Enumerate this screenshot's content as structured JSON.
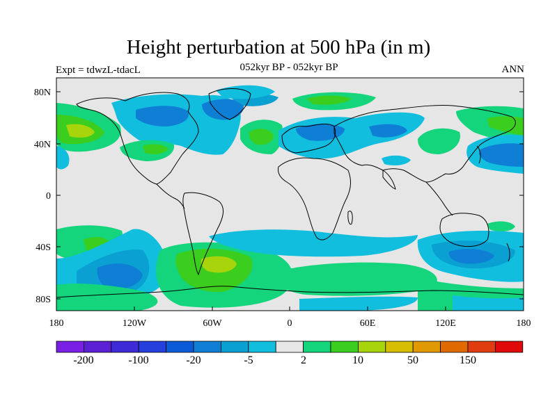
{
  "title": "Height perturbation at 500 hPa (in m)",
  "subtitle_left": "Expt = tdwzL-tdacL",
  "subtitle_center": "052kyr BP - 052kyr BP",
  "subtitle_right": "ANN",
  "map": {
    "lat_ticks": [
      "80N",
      "40N",
      "0",
      "40S",
      "80S"
    ],
    "lon_ticks": [
      "180",
      "120W",
      "60W",
      "0",
      "60E",
      "120E",
      "180"
    ]
  },
  "colorbar": {
    "colors": [
      "#7a1fe6",
      "#5b1fd4",
      "#3f2ad8",
      "#2540dc",
      "#0a5ad8",
      "#0f7fd6",
      "#0aa0d2",
      "#12bede",
      "#e6e6e6",
      "#14d47c",
      "#3cce1e",
      "#a8d40c",
      "#d8be00",
      "#e09a00",
      "#e06a00",
      "#e03c10",
      "#e00a0a"
    ],
    "labels": [
      "-200",
      "-100",
      "-20",
      "-5",
      "2",
      "10",
      "50",
      "150"
    ]
  },
  "palette": {
    "land_bg": "#e6e6e6",
    "light_blue": "#12bede",
    "mid_blue": "#0aa0d2",
    "blue": "#0f7fd6",
    "light_green": "#14d47c",
    "green": "#3cce1e",
    "yellow_green": "#a8d40c"
  }
}
